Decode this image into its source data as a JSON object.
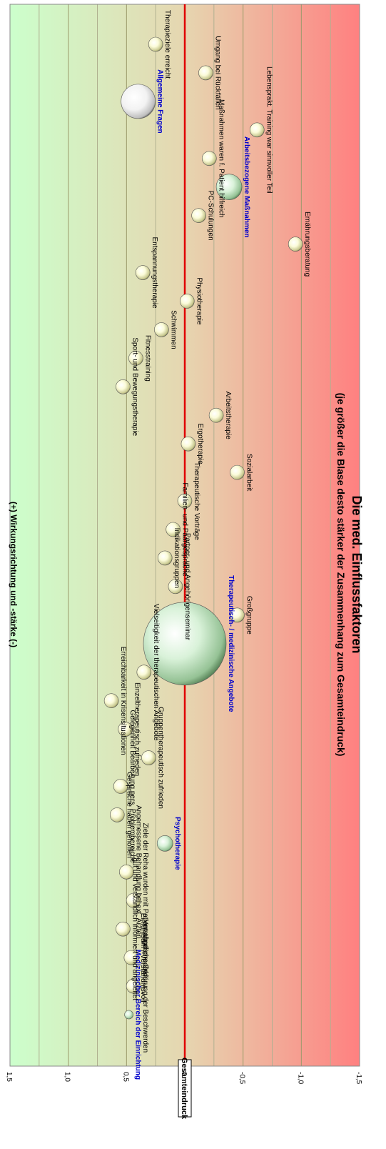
{
  "chart_data": {
    "type": "bubble",
    "title": "Die med. Einflussfaktoren",
    "subtitle": "(je größer die Blase desto stärker der Zusammenhang zum Gesamteindruck)",
    "ylabel_positive": "(+)",
    "ylabel_text": "Wirkungsrichtung und -stärke",
    "ylabel_negative": "(-)",
    "ylim": [
      -1.5,
      1.5
    ],
    "yticks": [
      "1,5",
      "1,0",
      "0,5",
      "0",
      "-0,5",
      "-1,0",
      "-1,5"
    ],
    "reference_label": "Gesamteindruck",
    "reference_value": 0,
    "background": "green-to-red gradient",
    "points": [
      {
        "label": "Medizinischer Bereich der Einrichtung",
        "y": 0.48,
        "size": 6,
        "group": true
      },
      {
        "label": "Verständliche Erklärung der Beschwerden",
        "y": 0.44,
        "size": 10
      },
      {
        "label": "Einfühlsam / Verständnisvoll",
        "y": 0.46,
        "size": 10
      },
      {
        "label": "gut und verständlich informiert und angeleitet",
        "y": 0.53,
        "size": 10
      },
      {
        "label": "Ziele der Reha wurden mit Patient abgesprochen",
        "y": 0.44,
        "size": 10
      },
      {
        "label": "Angemessene Behandlung bei ext. Ärzten",
        "y": 0.5,
        "size": 10
      },
      {
        "label": "Psychotherapie",
        "y": 0.17,
        "size": 11,
        "group": true
      },
      {
        "label": "Gespräche haben geholfen",
        "y": 0.58,
        "size": 10
      },
      {
        "label": "Gelegenheit Bearbeitung pers. Problembereiche",
        "y": 0.55,
        "size": 10
      },
      {
        "label": "Gruppentherapeutisch zufrieden",
        "y": 0.31,
        "size": 10
      },
      {
        "label": "Einzeltherapeutisch zufrieden",
        "y": 0.51,
        "size": 10
      },
      {
        "label": "Erreichbarkeit in Krisensituationen",
        "y": 0.63,
        "size": 10
      },
      {
        "label": "Vielseitigkeit der therapeutischen Angebote",
        "y": 0.35,
        "size": 10
      },
      {
        "label": "Therapeutisch- / medizinische Angebote",
        "y": 0.0,
        "size": 58,
        "group": true
      },
      {
        "label": "Großgruppe",
        "y": -0.45,
        "size": 10
      },
      {
        "label": "Partner- und Angehörigenseminar",
        "y": 0.08,
        "size": 10
      },
      {
        "label": "Indikationsgruppen",
        "y": 0.17,
        "size": 10
      },
      {
        "label": "Familien- und Paargespräche",
        "y": 0.1,
        "size": 10
      },
      {
        "label": "Therapeutische Vorträge",
        "y": 0.0,
        "size": 10
      },
      {
        "label": "Sozialarbeit",
        "y": -0.45,
        "size": 10
      },
      {
        "label": "Ergotherapie",
        "y": -0.03,
        "size": 10
      },
      {
        "label": "Arbeitstherapie",
        "y": -0.27,
        "size": 10
      },
      {
        "label": "Sport- und Bewegungstherapie",
        "y": 0.53,
        "size": 10
      },
      {
        "label": "Fitnesstraining",
        "y": 0.42,
        "size": 10
      },
      {
        "label": "Schwimmen",
        "y": 0.2,
        "size": 10
      },
      {
        "label": "Physiotherapie",
        "y": -0.02,
        "size": 10
      },
      {
        "label": "Entspannungstherapie",
        "y": 0.36,
        "size": 10
      },
      {
        "label": "Ernährungsberatung",
        "y": -0.95,
        "size": 10
      },
      {
        "label": "PC-Schulungen",
        "y": -0.12,
        "size": 10
      },
      {
        "label": "Arbeitsbezogene Maßnahmen",
        "y": -0.38,
        "size": 18,
        "group": true
      },
      {
        "label": "Maßnahmen waren f. Patient hilfreich",
        "y": -0.21,
        "size": 10
      },
      {
        "label": "Lebensprakt. Training war sinnvoller Teil",
        "y": -0.62,
        "size": 10
      },
      {
        "label": "Allgemeine Fragen",
        "y": 0.4,
        "size": 24,
        "group": true
      },
      {
        "label": "Umgang bei Rückfällen",
        "y": -0.18,
        "size": 10
      },
      {
        "label": "Therapieziele erreicht",
        "y": 0.25,
        "size": 10
      }
    ]
  }
}
